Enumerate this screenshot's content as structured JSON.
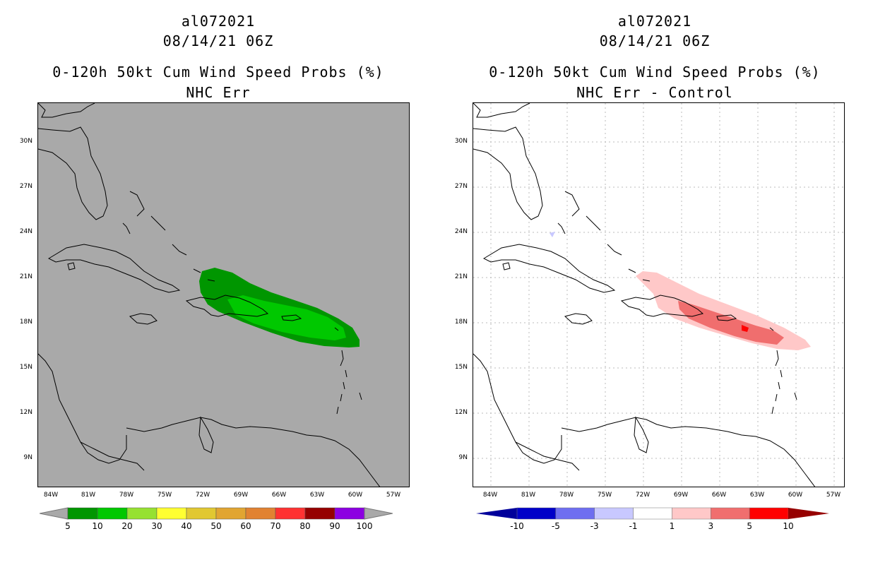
{
  "left": {
    "title_storm": "al072021",
    "title_time": "08/14/21 06Z",
    "title_product": "0-120h 50kt Cum Wind Speed Probs (%)",
    "title_sub": "NHC Err",
    "background_color": "#a9a9a9",
    "colorbar": {
      "colors": [
        "#009600",
        "#00c800",
        "#96e132",
        "#ffff32",
        "#e1c832",
        "#e1a532",
        "#e18232",
        "#ff3232",
        "#960000",
        "#8c00e1"
      ],
      "labels": [
        "5",
        "10",
        "20",
        "30",
        "40",
        "50",
        "60",
        "70",
        "80",
        "90",
        "100"
      ],
      "end_arrow_color": "#a9a9a9"
    }
  },
  "right": {
    "title_storm": "al072021",
    "title_time": "08/14/21 06Z",
    "title_product": "0-120h 50kt Cum Wind Speed Probs (%)",
    "title_sub": "NHC Err - Control",
    "background_color": "#ffffff",
    "colorbar": {
      "colors": [
        "#0000c8",
        "#6e6ef0",
        "#c8c8ff",
        "#ffffff",
        "#ffc8c8",
        "#f06e6e",
        "#ff0000"
      ],
      "labels": [
        "-10",
        "-5",
        "-3",
        "-1",
        "1",
        "3",
        "5",
        "10"
      ],
      "low_arrow_color": "#00009b",
      "high_arrow_color": "#960000"
    }
  },
  "latitude_labels": [
    "30N",
    "27N",
    "24N",
    "21N",
    "18N",
    "15N",
    "12N",
    "9N"
  ],
  "longitude_labels": [
    "84W",
    "81W",
    "78W",
    "75W",
    "72W",
    "69W",
    "66W",
    "63W",
    "60W",
    "57W"
  ]
}
